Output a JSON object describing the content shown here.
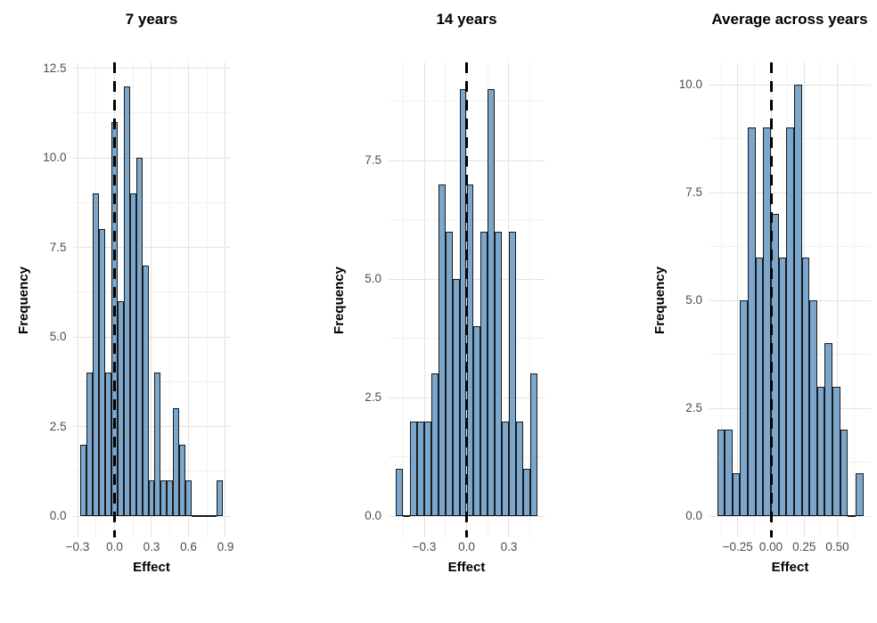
{
  "figure": {
    "background": "#FFFFFF",
    "colors": {
      "bar_fill": "#7CA7CD",
      "bar_stroke": "#1A1A1A",
      "grid_major": "#E3E3E3",
      "grid_minor": "#F1F1F1",
      "tick_label": "#4D4D4D",
      "vline": "#000000"
    }
  },
  "chart_data": [
    {
      "type": "bar",
      "subtype": "histogram",
      "title": "7 years",
      "xlabel": "Effect",
      "ylabel": "Frequency",
      "bin_start": -0.275,
      "bin_width": 0.05,
      "counts": [
        2,
        4,
        9,
        8,
        4,
        11,
        6,
        12,
        9,
        10,
        7,
        1,
        4,
        1,
        1,
        3,
        2,
        1,
        0,
        0,
        0,
        0,
        1
      ],
      "vline_x": 0,
      "x_ticks": [
        {
          "v": -0.3,
          "label": "−0.3"
        },
        {
          "v": 0,
          "label": "0.0"
        },
        {
          "v": 0.3,
          "label": "0.3"
        },
        {
          "v": 0.6,
          "label": "0.6"
        },
        {
          "v": 0.9,
          "label": "0.9"
        }
      ],
      "y_ticks": [
        {
          "v": 0,
          "label": "0.0"
        },
        {
          "v": 2.5,
          "label": "2.5"
        },
        {
          "v": 5,
          "label": "5.0"
        },
        {
          "v": 7.5,
          "label": "7.5"
        },
        {
          "v": 10,
          "label": "10.0"
        },
        {
          "v": 12.5,
          "label": "12.5"
        }
      ],
      "x_minor": [
        -0.15,
        0.15,
        0.45,
        0.75
      ],
      "y_minor": [
        1.25,
        3.75,
        6.25,
        8.75,
        11.25
      ],
      "xlim": [
        -0.3325,
        0.9325
      ],
      "ylim": [
        -0.6,
        12.6
      ],
      "grid": true,
      "legend": "none"
    },
    {
      "type": "bar",
      "subtype": "histogram",
      "title": "14 years",
      "xlabel": "Effect",
      "ylabel": "Frequency",
      "bin_start": -0.5,
      "bin_width": 0.05,
      "counts": [
        1,
        0,
        2,
        2,
        2,
        3,
        7,
        6,
        5,
        9,
        7,
        4,
        6,
        9,
        6,
        2,
        6,
        2,
        1,
        3
      ],
      "vline_x": 0,
      "x_ticks": [
        {
          "v": -0.3,
          "label": "−0.3"
        },
        {
          "v": 0,
          "label": "0.0"
        },
        {
          "v": 0.3,
          "label": "0.3"
        }
      ],
      "y_ticks": [
        {
          "v": 0,
          "label": "0.0"
        },
        {
          "v": 2.5,
          "label": "2.5"
        },
        {
          "v": 5,
          "label": "5.0"
        },
        {
          "v": 7.5,
          "label": "7.5"
        }
      ],
      "x_minor": [
        -0.45,
        -0.15,
        0.15,
        0.45
      ],
      "y_minor": [
        1.25,
        3.75,
        6.25,
        8.75
      ],
      "xlim": [
        -0.552,
        0.552
      ],
      "ylim": [
        -0.45,
        9.45
      ],
      "grid": true,
      "legend": "none"
    },
    {
      "type": "bar",
      "subtype": "histogram",
      "title": "Average across years",
      "xlabel": "Effect",
      "ylabel": "Frequency",
      "bin_start": -0.406,
      "bin_width": 0.058,
      "counts": [
        2,
        2,
        1,
        5,
        9,
        6,
        9,
        7,
        6,
        9,
        10,
        6,
        5,
        3,
        4,
        3,
        2,
        0,
        1
      ],
      "vline_x": 0,
      "x_ticks": [
        {
          "v": -0.25,
          "label": "−0.25"
        },
        {
          "v": 0,
          "label": "0.00"
        },
        {
          "v": 0.25,
          "label": "0.25"
        },
        {
          "v": 0.5,
          "label": "0.50"
        }
      ],
      "y_ticks": [
        {
          "v": 0,
          "label": "0.0"
        },
        {
          "v": 2.5,
          "label": "2.5"
        },
        {
          "v": 5,
          "label": "5.0"
        },
        {
          "v": 7.5,
          "label": "7.5"
        },
        {
          "v": 10,
          "label": "10.0"
        }
      ],
      "x_minor": [
        -0.375,
        -0.125,
        0.125,
        0.375,
        0.625
      ],
      "y_minor": [
        1.25,
        3.75,
        6.25,
        8.75
      ],
      "xlim": [
        -0.461,
        0.751
      ],
      "ylim": [
        -0.5,
        10.5
      ],
      "grid": true,
      "legend": "none"
    }
  ]
}
